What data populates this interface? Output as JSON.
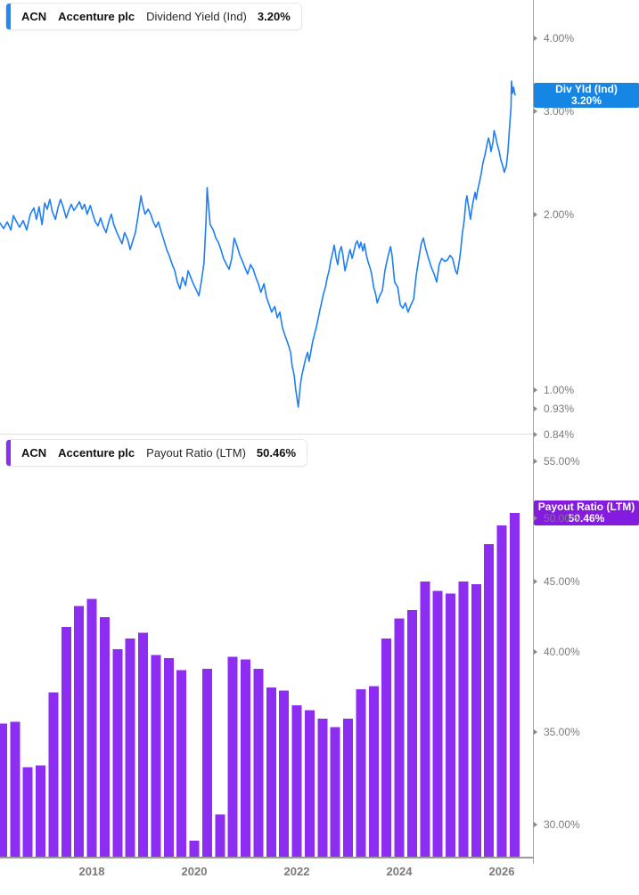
{
  "ui": {
    "top_legend": {
      "ticker": "ACN",
      "company": "Accenture plc",
      "metric": "Dividend Yield (Ind)",
      "value": "3.20%",
      "accent_color": "#1e8af5"
    },
    "bottom_legend": {
      "ticker": "ACN",
      "company": "Accenture plc",
      "metric": "Payout Ratio (LTM)",
      "value": "50.46%",
      "accent_color": "#8d2df2"
    },
    "badges": {
      "yield": {
        "line1": "Div Yld (Ind)",
        "line2": "3.20%",
        "value": 3.2,
        "color": "#1686e4"
      },
      "payout": {
        "line1": "Payout Ratio (LTM)",
        "line2": "50.46%",
        "value": 50.46,
        "color": "#861be0"
      }
    },
    "right_axis": {
      "top_ticks": [
        {
          "label": "4.00%",
          "value": 4.0
        },
        {
          "label": "3.00%",
          "value": 3.0
        },
        {
          "label": "2.00%",
          "value": 2.0
        },
        {
          "label": "1.00%",
          "value": 1.0
        },
        {
          "label": "0.93%",
          "value": 0.93
        },
        {
          "label": "0.84%",
          "value": 0.84
        }
      ],
      "bottom_ticks": [
        {
          "label": "55.00%",
          "value": 55.0
        },
        {
          "label": "50.00%",
          "value": 50.0
        },
        {
          "label": "45.00%",
          "value": 45.0
        },
        {
          "label": "40.00%",
          "value": 40.0
        },
        {
          "label": "35.00%",
          "value": 35.0
        },
        {
          "label": "30.00%",
          "value": 30.0
        }
      ]
    },
    "x_axis": {
      "labels": [
        {
          "label": "2018",
          "year": 2018
        },
        {
          "label": "2020",
          "year": 2020
        },
        {
          "label": "2022",
          "year": 2022
        },
        {
          "label": "2024",
          "year": 2024
        },
        {
          "label": "2026",
          "year": 2026
        }
      ]
    },
    "colors": {
      "line": "#1e7ef2",
      "bars": "#8d2df2",
      "axis": "#a3a3a3",
      "x_axis_line": "#9a9a9a",
      "divider": "#e0e0e0",
      "tick_text": "#7a7a7a",
      "chip_border": "#e8e8e8"
    }
  },
  "chart_data": [
    {
      "type": "line",
      "title": "ACN Accenture plc Dividend Yield (Ind)",
      "series_name": "Div Yld (Ind)",
      "unit": "percent",
      "yscale": "log",
      "grid": false,
      "legend_position": "top-left",
      "y_axis_ticks": [
        4.0,
        3.0,
        2.0,
        1.0,
        0.93,
        0.84
      ],
      "x_range": [
        2016.21,
        2026.26
      ],
      "last_value": 3.2,
      "points": [
        [
          2016.21,
          1.93
        ],
        [
          2016.28,
          1.89
        ],
        [
          2016.35,
          1.94
        ],
        [
          2016.42,
          1.88
        ],
        [
          2016.47,
          1.99
        ],
        [
          2016.52,
          1.95
        ],
        [
          2016.59,
          1.9
        ],
        [
          2016.66,
          1.95
        ],
        [
          2016.73,
          1.88
        ],
        [
          2016.8,
          2.0
        ],
        [
          2016.87,
          2.05
        ],
        [
          2016.92,
          1.96
        ],
        [
          2016.97,
          2.06
        ],
        [
          2017.03,
          1.92
        ],
        [
          2017.08,
          2.09
        ],
        [
          2017.13,
          2.04
        ],
        [
          2017.18,
          2.12
        ],
        [
          2017.23,
          2.02
        ],
        [
          2017.29,
          1.96
        ],
        [
          2017.34,
          2.05
        ],
        [
          2017.39,
          2.12
        ],
        [
          2017.44,
          2.06
        ],
        [
          2017.5,
          1.97
        ],
        [
          2017.55,
          2.03
        ],
        [
          2017.6,
          2.08
        ],
        [
          2017.65,
          2.03
        ],
        [
          2017.7,
          2.06
        ],
        [
          2017.76,
          2.1
        ],
        [
          2017.81,
          2.04
        ],
        [
          2017.86,
          2.08
        ],
        [
          2017.91,
          2.0
        ],
        [
          2017.97,
          2.07
        ],
        [
          2018.02,
          2.0
        ],
        [
          2018.07,
          1.94
        ],
        [
          2018.12,
          1.91
        ],
        [
          2018.17,
          1.97
        ],
        [
          2018.23,
          1.9
        ],
        [
          2018.28,
          1.86
        ],
        [
          2018.33,
          1.94
        ],
        [
          2018.38,
          2.0
        ],
        [
          2018.43,
          1.92
        ],
        [
          2018.49,
          1.86
        ],
        [
          2018.54,
          1.82
        ],
        [
          2018.59,
          1.78
        ],
        [
          2018.64,
          1.86
        ],
        [
          2018.7,
          1.81
        ],
        [
          2018.75,
          1.74
        ],
        [
          2018.8,
          1.8
        ],
        [
          2018.85,
          1.86
        ],
        [
          2018.9,
          1.98
        ],
        [
          2018.96,
          2.15
        ],
        [
          2018.99,
          2.08
        ],
        [
          2019.04,
          2.0
        ],
        [
          2019.1,
          2.04
        ],
        [
          2019.15,
          2.0
        ],
        [
          2019.2,
          1.94
        ],
        [
          2019.25,
          1.9
        ],
        [
          2019.3,
          1.94
        ],
        [
          2019.36,
          1.86
        ],
        [
          2019.41,
          1.8
        ],
        [
          2019.46,
          1.74
        ],
        [
          2019.51,
          1.7
        ],
        [
          2019.57,
          1.64
        ],
        [
          2019.62,
          1.6
        ],
        [
          2019.67,
          1.53
        ],
        [
          2019.72,
          1.49
        ],
        [
          2019.77,
          1.56
        ],
        [
          2019.83,
          1.51
        ],
        [
          2019.88,
          1.6
        ],
        [
          2019.93,
          1.56
        ],
        [
          2019.98,
          1.52
        ],
        [
          2020.03,
          1.49
        ],
        [
          2020.09,
          1.45
        ],
        [
          2020.14,
          1.54
        ],
        [
          2020.19,
          1.65
        ],
        [
          2020.23,
          1.95
        ],
        [
          2020.25,
          2.22
        ],
        [
          2020.28,
          2.06
        ],
        [
          2020.31,
          1.92
        ],
        [
          2020.37,
          1.88
        ],
        [
          2020.42,
          1.82
        ],
        [
          2020.47,
          1.79
        ],
        [
          2020.52,
          1.74
        ],
        [
          2020.57,
          1.68
        ],
        [
          2020.63,
          1.64
        ],
        [
          2020.68,
          1.61
        ],
        [
          2020.73,
          1.68
        ],
        [
          2020.78,
          1.82
        ],
        [
          2020.83,
          1.77
        ],
        [
          2020.89,
          1.7
        ],
        [
          2020.94,
          1.66
        ],
        [
          2020.99,
          1.62
        ],
        [
          2021.04,
          1.58
        ],
        [
          2021.1,
          1.64
        ],
        [
          2021.15,
          1.61
        ],
        [
          2021.2,
          1.56
        ],
        [
          2021.25,
          1.52
        ],
        [
          2021.3,
          1.47
        ],
        [
          2021.36,
          1.52
        ],
        [
          2021.41,
          1.44
        ],
        [
          2021.46,
          1.4
        ],
        [
          2021.51,
          1.36
        ],
        [
          2021.57,
          1.39
        ],
        [
          2021.62,
          1.33
        ],
        [
          2021.67,
          1.36
        ],
        [
          2021.72,
          1.28
        ],
        [
          2021.77,
          1.24
        ],
        [
          2021.83,
          1.2
        ],
        [
          2021.88,
          1.16
        ],
        [
          2021.91,
          1.1
        ],
        [
          2021.95,
          1.06
        ],
        [
          2021.98,
          1.0
        ],
        [
          2022.01,
          0.96
        ],
        [
          2022.03,
          0.935
        ],
        [
          2022.07,
          1.02
        ],
        [
          2022.1,
          1.06
        ],
        [
          2022.14,
          1.1
        ],
        [
          2022.17,
          1.13
        ],
        [
          2022.21,
          1.16
        ],
        [
          2022.24,
          1.12
        ],
        [
          2022.28,
          1.17
        ],
        [
          2022.31,
          1.21
        ],
        [
          2022.35,
          1.25
        ],
        [
          2022.38,
          1.28
        ],
        [
          2022.42,
          1.33
        ],
        [
          2022.45,
          1.37
        ],
        [
          2022.49,
          1.42
        ],
        [
          2022.52,
          1.46
        ],
        [
          2022.56,
          1.5
        ],
        [
          2022.59,
          1.55
        ],
        [
          2022.63,
          1.6
        ],
        [
          2022.66,
          1.66
        ],
        [
          2022.7,
          1.72
        ],
        [
          2022.73,
          1.77
        ],
        [
          2022.77,
          1.68
        ],
        [
          2022.8,
          1.64
        ],
        [
          2022.83,
          1.72
        ],
        [
          2022.87,
          1.76
        ],
        [
          2022.9,
          1.7
        ],
        [
          2022.94,
          1.6
        ],
        [
          2022.97,
          1.64
        ],
        [
          2023.01,
          1.7
        ],
        [
          2023.04,
          1.74
        ],
        [
          2023.08,
          1.68
        ],
        [
          2023.11,
          1.72
        ],
        [
          2023.15,
          1.78
        ],
        [
          2023.18,
          1.8
        ],
        [
          2023.22,
          1.75
        ],
        [
          2023.25,
          1.79
        ],
        [
          2023.29,
          1.73
        ],
        [
          2023.32,
          1.78
        ],
        [
          2023.36,
          1.7
        ],
        [
          2023.39,
          1.66
        ],
        [
          2023.43,
          1.62
        ],
        [
          2023.46,
          1.58
        ],
        [
          2023.5,
          1.5
        ],
        [
          2023.54,
          1.46
        ],
        [
          2023.57,
          1.41
        ],
        [
          2023.62,
          1.45
        ],
        [
          2023.67,
          1.48
        ],
        [
          2023.72,
          1.6
        ],
        [
          2023.77,
          1.68
        ],
        [
          2023.83,
          1.76
        ],
        [
          2023.86,
          1.7
        ],
        [
          2023.91,
          1.53
        ],
        [
          2023.97,
          1.5
        ],
        [
          2024.02,
          1.4
        ],
        [
          2024.07,
          1.38
        ],
        [
          2024.12,
          1.41
        ],
        [
          2024.17,
          1.36
        ],
        [
          2024.23,
          1.4
        ],
        [
          2024.28,
          1.43
        ],
        [
          2024.33,
          1.57
        ],
        [
          2024.38,
          1.68
        ],
        [
          2024.43,
          1.78
        ],
        [
          2024.47,
          1.82
        ],
        [
          2024.52,
          1.74
        ],
        [
          2024.57,
          1.68
        ],
        [
          2024.63,
          1.62
        ],
        [
          2024.68,
          1.58
        ],
        [
          2024.73,
          1.53
        ],
        [
          2024.78,
          1.64
        ],
        [
          2024.83,
          1.68
        ],
        [
          2024.89,
          1.66
        ],
        [
          2024.94,
          1.67
        ],
        [
          2024.99,
          1.7
        ],
        [
          2025.04,
          1.68
        ],
        [
          2025.1,
          1.6
        ],
        [
          2025.13,
          1.58
        ],
        [
          2025.17,
          1.66
        ],
        [
          2025.2,
          1.74
        ],
        [
          2025.23,
          1.85
        ],
        [
          2025.27,
          1.96
        ],
        [
          2025.3,
          2.1
        ],
        [
          2025.32,
          2.15
        ],
        [
          2025.36,
          2.04
        ],
        [
          2025.39,
          1.96
        ],
        [
          2025.41,
          2.02
        ],
        [
          2025.44,
          2.1
        ],
        [
          2025.48,
          2.18
        ],
        [
          2025.5,
          2.12
        ],
        [
          2025.53,
          2.2
        ],
        [
          2025.57,
          2.28
        ],
        [
          2025.6,
          2.35
        ],
        [
          2025.63,
          2.44
        ],
        [
          2025.67,
          2.52
        ],
        [
          2025.7,
          2.6
        ],
        [
          2025.74,
          2.7
        ],
        [
          2025.77,
          2.64
        ],
        [
          2025.79,
          2.56
        ],
        [
          2025.83,
          2.66
        ],
        [
          2025.85,
          2.78
        ],
        [
          2025.88,
          2.72
        ],
        [
          2025.91,
          2.64
        ],
        [
          2025.95,
          2.56
        ],
        [
          2025.98,
          2.48
        ],
        [
          2026.02,
          2.42
        ],
        [
          2026.05,
          2.36
        ],
        [
          2026.09,
          2.42
        ],
        [
          2026.12,
          2.56
        ],
        [
          2026.14,
          2.72
        ],
        [
          2026.16,
          2.88
        ],
        [
          2026.18,
          3.05
        ],
        [
          2026.19,
          3.38
        ],
        [
          2026.21,
          3.22
        ],
        [
          2026.23,
          3.3
        ],
        [
          2026.26,
          3.2
        ]
      ]
    },
    {
      "type": "bar",
      "title": "ACN Accenture plc Payout Ratio (LTM)",
      "series_name": "Payout Ratio (LTM)",
      "unit": "percent",
      "yscale": "log",
      "grid": false,
      "legend_position": "top-left",
      "y_axis_ticks": [
        55.0,
        50.0,
        45.0,
        40.0,
        35.0,
        30.0
      ],
      "x_start": 2016.25,
      "x_step": 0.25,
      "last_value": 50.46,
      "values": [
        35.5,
        35.6,
        33.0,
        33.1,
        37.4,
        41.7,
        43.2,
        43.7,
        42.4,
        40.2,
        40.9,
        41.3,
        39.8,
        39.6,
        38.8,
        29.2,
        38.9,
        30.5,
        39.7,
        39.5,
        38.9,
        37.7,
        37.5,
        36.6,
        36.3,
        35.8,
        35.3,
        35.8,
        37.6,
        37.8,
        40.9,
        42.3,
        42.9,
        45.0,
        44.3,
        44.1,
        45.0,
        44.8,
        47.9,
        49.4,
        50.46
      ]
    }
  ]
}
